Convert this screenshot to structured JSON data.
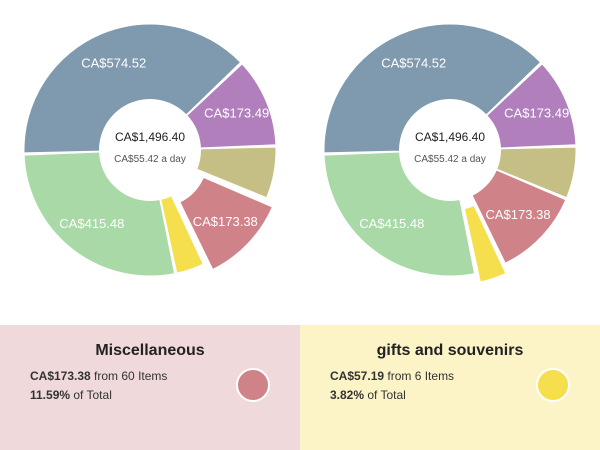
{
  "summary": {
    "total": "CA$1,496.40",
    "daily": "CA$55.42 a day"
  },
  "chart_data": [
    {
      "type": "pie",
      "categories": [
        "",
        "",
        "",
        "Miscellaneous",
        "gifts and souvenirs",
        ""
      ],
      "values": [
        574.52,
        173.49,
        102.34,
        173.38,
        57.19,
        415.48
      ],
      "labels": [
        "CA$574.52",
        "CA$173.49",
        "",
        "CA$173.38",
        "",
        "CA$415.48"
      ],
      "colors": [
        "#7f99ae",
        "#b07fbc",
        "#c6bf85",
        "#cf8288",
        "#f5df4d",
        "#a9d9a6"
      ],
      "selected": 3
    },
    {
      "type": "pie",
      "categories": [
        "",
        "",
        "",
        "Miscellaneous",
        "gifts and souvenirs",
        ""
      ],
      "values": [
        574.52,
        173.49,
        102.34,
        173.38,
        57.19,
        415.48
      ],
      "labels": [
        "CA$574.52",
        "CA$173.49",
        "",
        "CA$173.38",
        "",
        "CA$415.48"
      ],
      "colors": [
        "#7f99ae",
        "#b07fbc",
        "#c6bf85",
        "#cf8288",
        "#f5df4d",
        "#a9d9a6"
      ],
      "selected": 4
    }
  ],
  "panels": [
    {
      "title": "Miscellaneous",
      "amount": "CA$173.38",
      "items_text": " from 60 Items",
      "percent": "11.59%",
      "percent_text": " of Total",
      "bg": "#efd9db",
      "color": "#cf8288"
    },
    {
      "title": "gifts and souvenirs",
      "amount": "CA$57.19",
      "items_text": " from 6 Items",
      "percent": "3.82%",
      "percent_text": " of Total",
      "bg": "#fcf4c6",
      "color": "#f5df4d"
    }
  ]
}
